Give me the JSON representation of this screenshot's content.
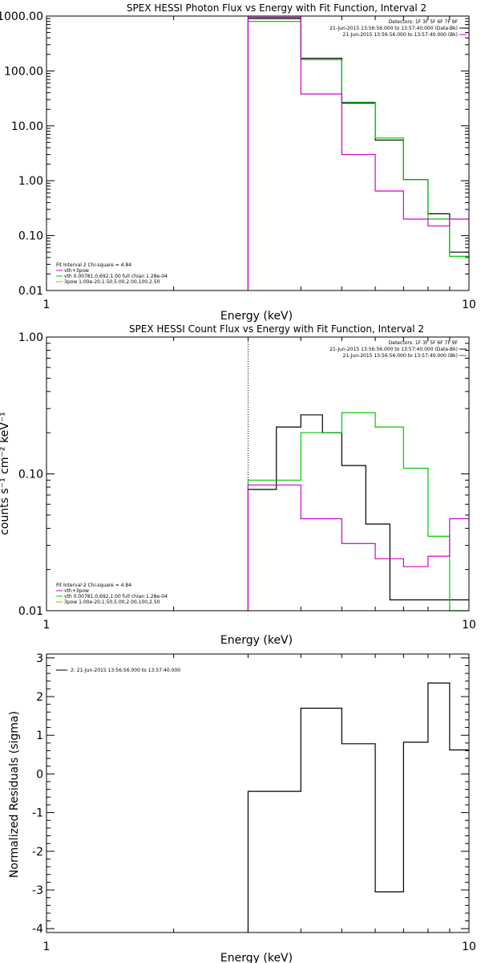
{
  "colors": {
    "black": "#000000",
    "green": "#00c800",
    "magenta": "#d000d0"
  },
  "chart_data": [
    {
      "id": "photon",
      "type": "line",
      "title": "SPEX HESSI Photon Flux vs Energy with Fit Function, Interval 2",
      "xlabel": "Energy (keV)",
      "ylabel": "",
      "xscale": "log",
      "yscale": "log",
      "xlim": [
        1,
        10
      ],
      "ylim": [
        0.01,
        1000
      ],
      "xtick_labels": [
        {
          "v": 1,
          "t": "1"
        },
        {
          "v": 10,
          "t": "10"
        }
      ],
      "ytick_labels": [
        {
          "v": 1000,
          "t": "1000.00"
        },
        {
          "v": 100,
          "t": "100.00"
        },
        {
          "v": 10,
          "t": "10.00"
        },
        {
          "v": 1,
          "t": "1.00"
        },
        {
          "v": 0.1,
          "t": "0.10"
        },
        {
          "v": 0.01,
          "t": "0.01"
        }
      ],
      "legend_top": [
        {
          "text": "Detectors: 1F 3F 5F 6F 7F 9F",
          "color": ""
        },
        {
          "text": "21-Jun-2015 13:56:56.000 to 13:57:40.000 (Data-Bk)",
          "color": "#000000"
        },
        {
          "text": "21-Jun-2015 13:56:56.000 to 13:57:40.000 (Bk)",
          "color": "#d000d0"
        }
      ],
      "legend_bottom": [
        {
          "text": "Fit Interval 2   Chi-square = 4.84",
          "color": ""
        },
        {
          "text": "vth+3pow",
          "color": "#d000d0"
        },
        {
          "text": "vth 0.00781,0.692,1.00  full chian 1.28e-04",
          "color": "#00c800"
        },
        {
          "text": "3pow 1.00e-20,1.50,5.00,2.00,100,2.50",
          "color": "#d0a000"
        }
      ],
      "vline": 3,
      "series": [
        {
          "color": "#000000",
          "edges": [
            3,
            4,
            5,
            6,
            7,
            8,
            9,
            10
          ],
          "values": [
            900,
            170,
            26,
            5.5,
            1.05,
            0.25,
            0.05
          ]
        },
        {
          "color": "#00c800",
          "edges": [
            3,
            4,
            5,
            6,
            7,
            8,
            9,
            10
          ],
          "values": [
            800,
            160,
            27,
            6.0,
            1.05,
            0.2,
            0.042
          ]
        },
        {
          "color": "#d000d0",
          "edges": [
            3,
            4,
            5,
            6,
            7,
            8,
            9,
            10
          ],
          "values": [
            950,
            38,
            3.0,
            0.65,
            0.2,
            0.15,
            0.2
          ]
        }
      ]
    },
    {
      "id": "count",
      "type": "line",
      "title": "SPEX HESSI Count Flux vs Energy with Fit Function, Interval 2",
      "xlabel": "Energy (keV)",
      "ylabel": "counts s⁻¹ cm⁻² keV⁻¹",
      "xscale": "log",
      "yscale": "log",
      "xlim": [
        1,
        10
      ],
      "ylim": [
        0.01,
        1
      ],
      "xtick_labels": [
        {
          "v": 1,
          "t": "1"
        },
        {
          "v": 10,
          "t": "10"
        }
      ],
      "ytick_labels": [
        {
          "v": 1,
          "t": "1.00"
        },
        {
          "v": 0.1,
          "t": "0.10"
        },
        {
          "v": 0.01,
          "t": "0.01"
        }
      ],
      "legend_top": [
        {
          "text": "Detectors: 1F 3F 5F 6F 7F 9F",
          "color": ""
        },
        {
          "text": "21-Jun-2015 13:56:56.000 to 13:57:40.000 (Data-Bk)",
          "color": "#000000"
        },
        {
          "text": "21-Jun-2015 13:56:56.000 to 13:57:40.000 (Bk)",
          "color": "#d000d0"
        }
      ],
      "legend_bottom": [
        {
          "text": "Fit Interval 2   Chi-square = 4.84",
          "color": ""
        },
        {
          "text": "vth+3pow",
          "color": "#d000d0"
        },
        {
          "text": "vth 0.00781,0.692,1.00  full chian 1.28e-04",
          "color": "#00c800"
        },
        {
          "text": "3pow 1.00e-20,1.50,5.00,2.00,100,2.50",
          "color": "#d0a000"
        }
      ],
      "vline": 3,
      "series": [
        {
          "color": "#000000",
          "edges": [
            3,
            3.5,
            4,
            4.5,
            5,
            5.7,
            6.5,
            7.4,
            8.4,
            9.5,
            10
          ],
          "values": [
            0.077,
            0.22,
            0.27,
            0.2,
            0.115,
            0.043,
            0.012,
            0.012,
            0.012,
            0.012
          ],
          "edges_used": 9
        },
        {
          "color": "#00c800",
          "edges": [
            3,
            4,
            5,
            6,
            7,
            8,
            9,
            10
          ],
          "values": [
            0.09,
            0.2,
            0.28,
            0.22,
            0.11,
            0.035,
            0.01
          ]
        },
        {
          "color": "#d000d0",
          "edges": [
            3,
            4,
            5,
            6,
            7,
            8,
            9,
            10
          ],
          "values": [
            0.083,
            0.047,
            0.031,
            0.024,
            0.021,
            0.025,
            0.047
          ]
        }
      ]
    },
    {
      "id": "resid",
      "type": "line",
      "title": "",
      "xlabel": "Energy (keV)",
      "ylabel": "Normalized Residuals (sigma)",
      "xscale": "log",
      "yscale": "linear",
      "xlim": [
        1,
        10
      ],
      "ylim": [
        -4.1,
        3.1
      ],
      "xtick_labels": [
        {
          "v": 1,
          "t": "1"
        },
        {
          "v": 10,
          "t": "10"
        }
      ],
      "ytick_labels": [
        {
          "v": 3,
          "t": "3"
        },
        {
          "v": 2,
          "t": "2"
        },
        {
          "v": 1,
          "t": "1"
        },
        {
          "v": 0,
          "t": "0"
        },
        {
          "v": -1,
          "t": "-1"
        },
        {
          "v": -2,
          "t": "-2"
        },
        {
          "v": -3,
          "t": "-3"
        },
        {
          "v": -4,
          "t": "-4"
        }
      ],
      "legend_top_left": [
        {
          "text": "2: 21-Jun-2015 13:56:56.000 to 13:57:40.000",
          "color": "#000000"
        }
      ],
      "series": [
        {
          "color": "#000000",
          "edges": [
            3,
            4,
            5,
            6,
            7,
            8,
            9,
            10
          ],
          "values": [
            -0.45,
            1.7,
            0.78,
            -3.05,
            0.82,
            2.35,
            0.62
          ]
        }
      ]
    }
  ]
}
